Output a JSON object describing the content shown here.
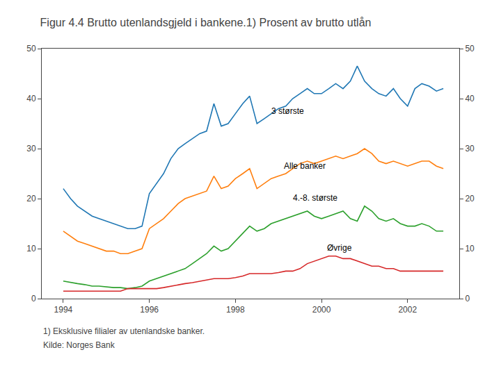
{
  "chart_data": {
    "type": "line",
    "title": "Figur 4.4 Brutto utenlandsgjeld i bankene.1) Prosent av brutto utlån",
    "x": [
      1994.0,
      1994.17,
      1994.33,
      1994.5,
      1994.67,
      1994.83,
      1995.0,
      1995.17,
      1995.33,
      1995.5,
      1995.67,
      1995.83,
      1996.0,
      1996.17,
      1996.33,
      1996.5,
      1996.67,
      1996.83,
      1997.0,
      1997.17,
      1997.33,
      1997.5,
      1997.67,
      1997.83,
      1998.0,
      1998.17,
      1998.33,
      1998.5,
      1998.67,
      1998.83,
      1999.0,
      1999.17,
      1999.33,
      1999.5,
      1999.67,
      1999.83,
      2000.0,
      2000.17,
      2000.33,
      2000.5,
      2000.67,
      2000.83,
      2001.0,
      2001.17,
      2001.33,
      2001.5,
      2001.67,
      2001.83,
      2002.0,
      2002.17,
      2002.33,
      2002.5,
      2002.67,
      2002.83
    ],
    "series": [
      {
        "name": "3 største",
        "values": [
          22.0,
          20.0,
          18.5,
          17.5,
          16.5,
          16.0,
          15.5,
          15.0,
          14.5,
          14.0,
          14.0,
          14.5,
          21.0,
          23.0,
          25.0,
          28.0,
          30.0,
          31.0,
          32.0,
          33.0,
          33.5,
          39.0,
          34.5,
          35.0,
          37.0,
          39.0,
          40.5,
          35.0,
          36.0,
          37.0,
          38.0,
          38.5,
          40.0,
          41.0,
          42.0,
          41.0,
          41.0,
          42.0,
          43.0,
          42.0,
          43.5,
          46.5,
          43.5,
          42.0,
          41.0,
          40.5,
          42.0,
          40.0,
          38.5,
          42.0,
          43.0,
          42.5,
          41.5,
          42.0
        ]
      },
      {
        "name": "Alle banker",
        "values": [
          13.5,
          12.5,
          11.5,
          11.0,
          10.5,
          10.0,
          9.5,
          9.5,
          9.0,
          9.0,
          9.5,
          10.0,
          14.0,
          15.0,
          16.0,
          17.5,
          19.0,
          20.0,
          20.5,
          21.0,
          21.5,
          24.5,
          22.0,
          22.5,
          24.0,
          25.0,
          26.0,
          22.0,
          23.0,
          24.0,
          24.5,
          25.0,
          26.0,
          27.0,
          27.5,
          27.0,
          27.5,
          28.0,
          28.5,
          28.0,
          28.5,
          29.0,
          30.0,
          29.0,
          27.5,
          27.0,
          27.5,
          27.0,
          26.5,
          27.0,
          27.5,
          27.5,
          26.5,
          26.0
        ]
      },
      {
        "name": "4.-8. største",
        "values": [
          3.5,
          3.2,
          3.0,
          2.8,
          2.5,
          2.5,
          2.3,
          2.2,
          2.2,
          2.0,
          2.2,
          2.5,
          3.5,
          4.0,
          4.5,
          5.0,
          5.5,
          6.0,
          7.0,
          8.0,
          9.0,
          10.5,
          9.5,
          10.0,
          11.5,
          13.0,
          14.5,
          13.5,
          14.0,
          15.0,
          15.5,
          16.0,
          16.5,
          17.0,
          17.5,
          16.5,
          16.0,
          16.5,
          17.0,
          17.5,
          16.0,
          15.5,
          18.5,
          17.5,
          16.0,
          15.5,
          16.0,
          15.0,
          14.5,
          14.5,
          15.0,
          14.5,
          13.5,
          13.5
        ]
      },
      {
        "name": "Øvrige",
        "values": [
          1.5,
          1.5,
          1.5,
          1.5,
          1.5,
          1.5,
          1.5,
          1.5,
          1.5,
          2.0,
          2.0,
          2.0,
          2.0,
          2.0,
          2.2,
          2.5,
          2.8,
          3.0,
          3.2,
          3.5,
          3.8,
          4.0,
          4.0,
          4.0,
          4.2,
          4.5,
          5.0,
          5.0,
          5.0,
          5.0,
          5.2,
          5.5,
          5.5,
          6.0,
          7.0,
          7.5,
          8.0,
          8.5,
          8.5,
          8.0,
          8.0,
          7.5,
          7.0,
          6.5,
          6.5,
          6.0,
          6.0,
          5.5,
          5.5,
          5.5,
          5.5,
          5.5,
          5.5,
          5.5
        ]
      }
    ],
    "annotations": [
      {
        "text": "3 største",
        "x": 1998.8,
        "y": 37.5
      },
      {
        "text": "Alle banker",
        "x": 1999.1,
        "y": 26.5
      },
      {
        "text": "4.-8. største",
        "x": 1999.3,
        "y": 20.2
      },
      {
        "text": "Øvrige",
        "x": 2000.1,
        "y": 10.2
      }
    ],
    "footnote": "1) Eksklusive filialer av utenlandske banker.",
    "source": "Kilde: Norges Bank",
    "xlim": [
      1993.5,
      2003.2
    ],
    "xticks": [
      1994,
      1996,
      1998,
      2000,
      2002
    ],
    "ylim": [
      0,
      50
    ],
    "yticks": [
      0,
      10,
      20,
      30,
      40,
      50
    ],
    "y2lim": [
      0,
      50
    ],
    "y2ticks": [
      0,
      10,
      20,
      30,
      40,
      50
    ],
    "grid": false
  }
}
